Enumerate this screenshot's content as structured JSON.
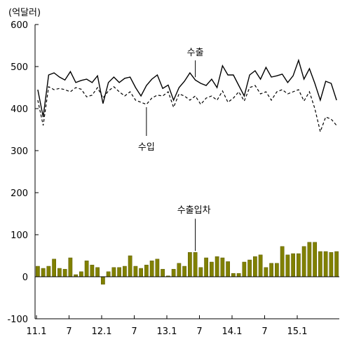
{
  "chart_data": {
    "type": "bar+line",
    "unit_label": "(억달러)",
    "ylim": [
      -100,
      600
    ],
    "yticks": [
      -100,
      0,
      100,
      200,
      300,
      400,
      500,
      600
    ],
    "x_start": "2011-01",
    "x_end": "2015-08",
    "x_tick_labels": [
      {
        "index": 0,
        "label": "11.1"
      },
      {
        "index": 6,
        "label": "7"
      },
      {
        "index": 12,
        "label": "12.1"
      },
      {
        "index": 18,
        "label": "7"
      },
      {
        "index": 24,
        "label": "13.1"
      },
      {
        "index": 30,
        "label": "7"
      },
      {
        "index": 36,
        "label": "14.1"
      },
      {
        "index": 42,
        "label": "7"
      },
      {
        "index": 48,
        "label": "15.1"
      }
    ],
    "colors": {
      "exports": "#000000",
      "imports": "#000000",
      "balance_fill": "#808000",
      "balance_stroke": "#5a5a00"
    },
    "series": [
      {
        "name": "수출",
        "kind": "line",
        "style": "solid",
        "values": [
          445,
          380,
          480,
          485,
          475,
          468,
          488,
          462,
          467,
          470,
          462,
          478,
          412,
          462,
          475,
          462,
          472,
          475,
          450,
          430,
          455,
          470,
          480,
          448,
          456,
          420,
          450,
          465,
          485,
          468,
          460,
          455,
          470,
          450,
          502,
          480,
          480,
          455,
          430,
          480,
          490,
          470,
          498,
          475,
          478,
          482,
          462,
          478,
          515,
          470,
          495,
          460,
          420,
          465,
          460,
          420
        ]
      },
      {
        "name": "수입",
        "kind": "line",
        "style": "dashed",
        "values": [
          420,
          360,
          452,
          445,
          448,
          445,
          440,
          450,
          446,
          428,
          432,
          450,
          425,
          442,
          452,
          440,
          430,
          440,
          420,
          415,
          410,
          425,
          432,
          430,
          440,
          403,
          435,
          430,
          420,
          430,
          410,
          425,
          430,
          420,
          442,
          415,
          425,
          440,
          418,
          450,
          455,
          435,
          440,
          420,
          440,
          445,
          435,
          440,
          445,
          418,
          440,
          400,
          345,
          380,
          375,
          360
        ]
      },
      {
        "name": "수출입차",
        "kind": "bar",
        "values": [
          25,
          20,
          25,
          42,
          20,
          18,
          45,
          5,
          12,
          38,
          28,
          22,
          -18,
          12,
          22,
          22,
          25,
          50,
          25,
          20,
          28,
          38,
          42,
          18,
          2,
          18,
          32,
          25,
          58,
          58,
          22,
          45,
          35,
          48,
          45,
          36,
          8,
          8,
          35,
          40,
          48,
          52,
          22,
          32,
          32,
          72,
          52,
          55,
          55,
          72,
          82,
          82,
          60,
          60,
          58,
          60
        ]
      }
    ],
    "annotations": [
      {
        "text": "수출",
        "series": "수출",
        "index": 29
      },
      {
        "text": "수입",
        "series": "수입",
        "index": 20
      },
      {
        "text": "수출입차",
        "series": "수출입차",
        "index": 29
      }
    ],
    "grid": false,
    "legend": "none"
  }
}
